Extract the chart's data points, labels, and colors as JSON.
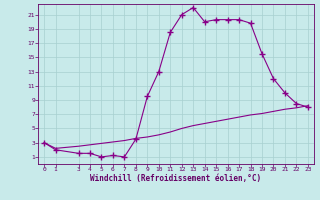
{
  "xlabel": "Windchill (Refroidissement éolien,°C)",
  "bg_color": "#c8eaea",
  "grid_color": "#a8d0d0",
  "line_color": "#880088",
  "marker": "+",
  "markersize": 4,
  "markerwidth": 1.0,
  "linewidth": 0.8,
  "xlim": [
    -0.5,
    23.5
  ],
  "ylim": [
    0,
    22.5
  ],
  "xticks": [
    0,
    1,
    3,
    4,
    5,
    6,
    7,
    8,
    9,
    10,
    11,
    12,
    13,
    14,
    15,
    16,
    17,
    18,
    19,
    20,
    21,
    22,
    23
  ],
  "yticks": [
    1,
    3,
    5,
    7,
    9,
    11,
    13,
    15,
    17,
    19,
    21
  ],
  "upper_x": [
    0,
    1,
    3,
    4,
    5,
    6,
    7,
    8,
    9,
    10,
    11,
    12,
    13,
    14,
    15,
    16,
    17,
    18,
    19,
    20,
    21,
    22,
    23
  ],
  "upper_y": [
    3,
    2,
    1.5,
    1.5,
    1.0,
    1.2,
    1.0,
    3.5,
    9.5,
    13.0,
    18.5,
    21.0,
    22.0,
    20.0,
    20.3,
    20.3,
    20.3,
    19.8,
    15.5,
    12.0,
    10.0,
    8.5,
    8.0
  ],
  "lower_x": [
    0,
    1,
    3,
    4,
    5,
    6,
    7,
    8,
    9,
    10,
    11,
    12,
    13,
    14,
    15,
    16,
    17,
    18,
    19,
    20,
    21,
    22,
    23
  ],
  "lower_y": [
    3.0,
    2.2,
    2.5,
    2.7,
    2.9,
    3.1,
    3.3,
    3.6,
    3.8,
    4.1,
    4.5,
    5.0,
    5.4,
    5.7,
    6.0,
    6.3,
    6.6,
    6.9,
    7.1,
    7.4,
    7.7,
    7.9,
    8.2
  ],
  "font_color": "#660066",
  "tick_fontsize": 4.5,
  "label_fontsize": 5.5
}
